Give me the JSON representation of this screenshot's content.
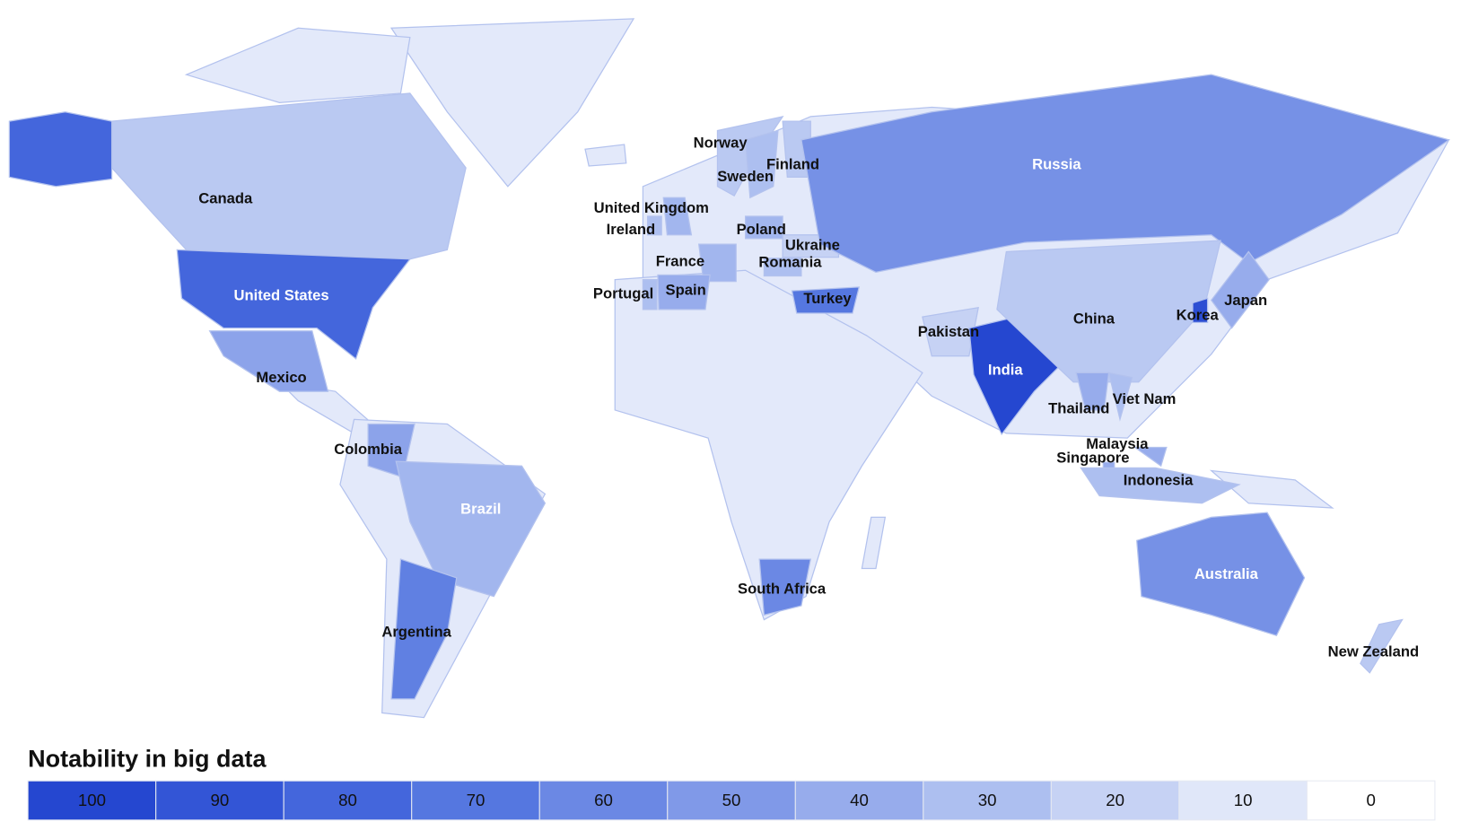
{
  "map": {
    "countries": [
      {
        "name": "Canada",
        "value": 25
      },
      {
        "name": "United States",
        "value": 80
      },
      {
        "name": "Mexico",
        "value": 45
      },
      {
        "name": "Colombia",
        "value": 45
      },
      {
        "name": "Brazil",
        "value": 35
      },
      {
        "name": "Argentina",
        "value": 65
      },
      {
        "name": "Norway",
        "value": 25
      },
      {
        "name": "Sweden",
        "value": 30
      },
      {
        "name": "Finland",
        "value": 25
      },
      {
        "name": "United Kingdom",
        "value": 35
      },
      {
        "name": "Ireland",
        "value": 30
      },
      {
        "name": "France",
        "value": 35
      },
      {
        "name": "Portugal",
        "value": 30
      },
      {
        "name": "Spain",
        "value": 40
      },
      {
        "name": "Poland",
        "value": 35
      },
      {
        "name": "Ukraine",
        "value": 20
      },
      {
        "name": "Romania",
        "value": 30
      },
      {
        "name": "Turkey",
        "value": 70
      },
      {
        "name": "Russia",
        "value": 55
      },
      {
        "name": "Pakistan",
        "value": 20
      },
      {
        "name": "India",
        "value": 100
      },
      {
        "name": "China",
        "value": 25
      },
      {
        "name": "Korea",
        "value": 95
      },
      {
        "name": "Japan",
        "value": 40
      },
      {
        "name": "Thailand",
        "value": 40
      },
      {
        "name": "Viet Nam",
        "value": 30
      },
      {
        "name": "Malaysia",
        "value": 40
      },
      {
        "name": "Singapore",
        "value": 40
      },
      {
        "name": "Indonesia",
        "value": 30
      },
      {
        "name": "South Africa",
        "value": 60
      },
      {
        "name": "Australia",
        "value": 55
      },
      {
        "name": "New Zealand",
        "value": 25
      }
    ],
    "legend": {
      "title": "Notability in big data",
      "ticks": [
        100,
        90,
        80,
        70,
        60,
        50,
        40,
        30,
        20,
        10,
        0
      ],
      "colors": [
        "#2547d0",
        "#3355d6",
        "#4466dc",
        "#5577e0",
        "#6b88e4",
        "#8099e8",
        "#97acec",
        "#adbff0",
        "#c6d2f4",
        "#e0e7f9",
        "#ffffff"
      ]
    }
  }
}
